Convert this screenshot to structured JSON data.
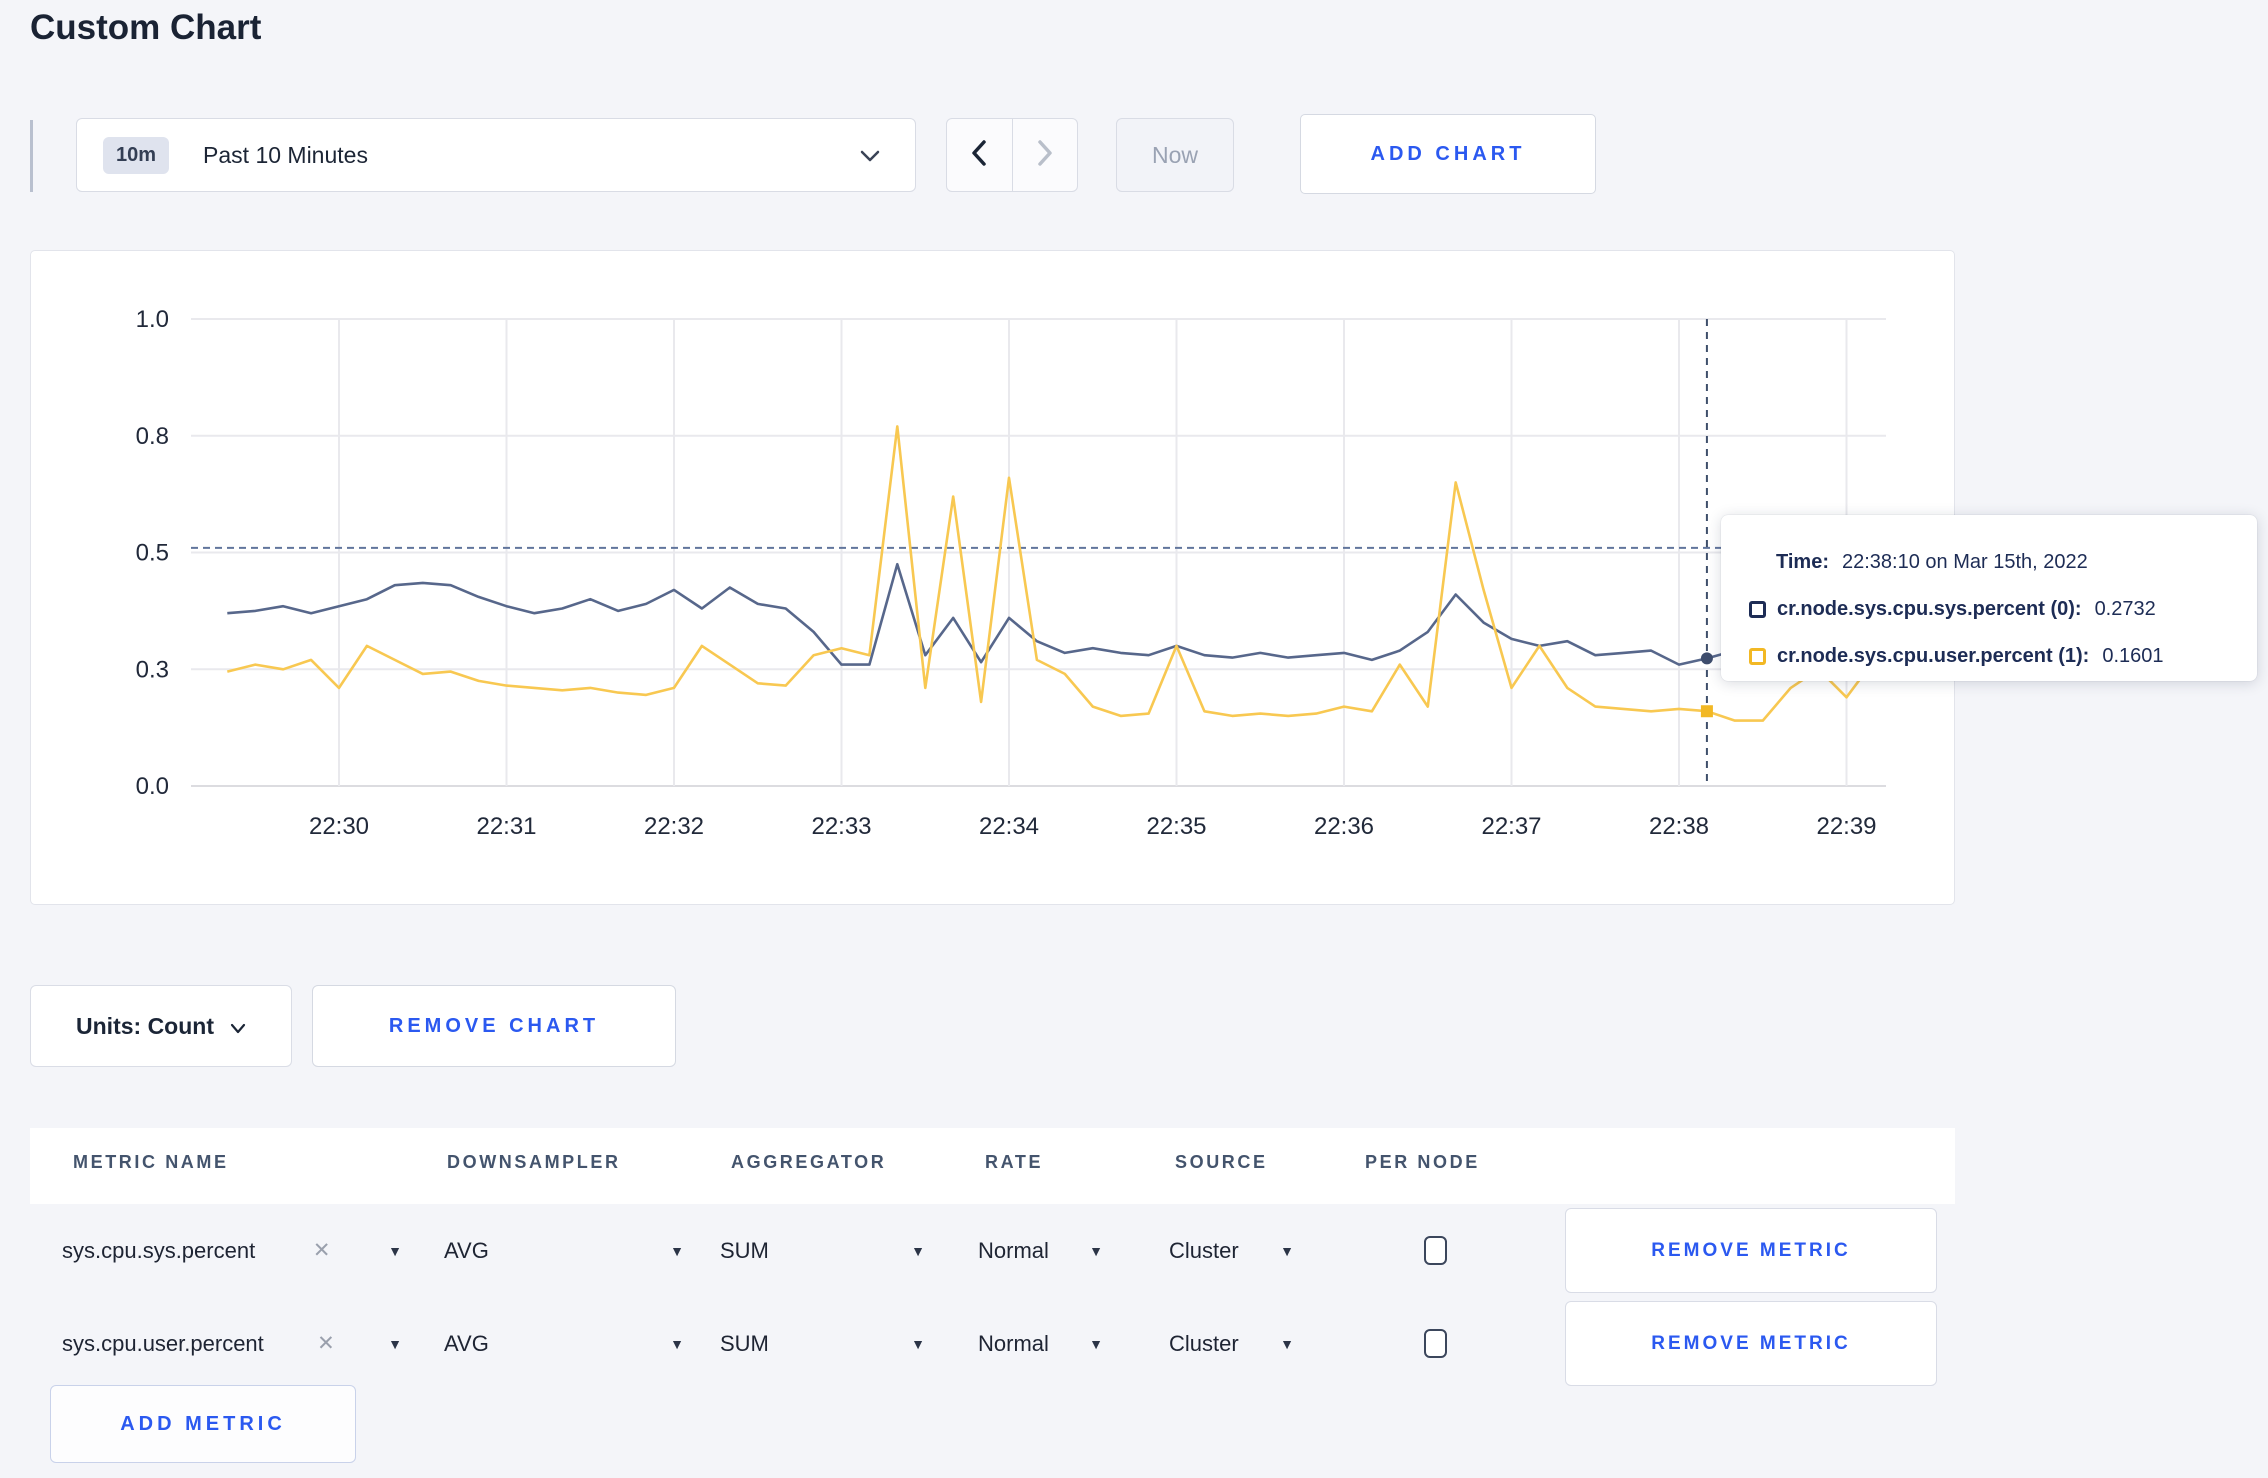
{
  "page": {
    "title": "Custom Chart",
    "background": "#f4f5f9"
  },
  "toolbar": {
    "time_window": {
      "badge": "10m",
      "label": "Past 10 Minutes",
      "dropdown_icon": "chevron-down-icon"
    },
    "prev_icon": "chevron-left-icon",
    "next_icon": "chevron-right-icon",
    "now_label": "Now",
    "add_chart_label": "ADD CHART"
  },
  "colors": {
    "accent_blue": "#2b59f0",
    "series_sys_line": "#57678b",
    "series_sys_swatch": "#1d2c55",
    "series_user_line": "#f8c851",
    "series_user_swatch": "#f2b824",
    "grid": "#e9e9ed",
    "crosshair": "#3f4f6b"
  },
  "chart_data": {
    "type": "line",
    "title": "",
    "xlabel": "",
    "ylabel": "",
    "ylim": [
      0,
      1
    ],
    "grid": true,
    "legend_position": "tooltip",
    "x_tick_labels": [
      "22:30",
      "22:31",
      "22:32",
      "22:33",
      "22:34",
      "22:35",
      "22:36",
      "22:37",
      "22:38",
      "22:39"
    ],
    "y_ticks": [
      0,
      0.25,
      0.5,
      0.75,
      1.0
    ],
    "y_tick_labels": [
      "0.0",
      "0.3",
      "0.5",
      "0.8",
      "1.0"
    ],
    "x_start_time": "22:29:20",
    "x_step_seconds": 10,
    "start_offset_seconds_before_first_tick": 40,
    "series": [
      {
        "name": "cr.node.sys.cpu.sys.percent (0)",
        "values": [
          0.37,
          0.375,
          0.385,
          0.37,
          0.385,
          0.4,
          0.43,
          0.435,
          0.43,
          0.405,
          0.385,
          0.37,
          0.38,
          0.4,
          0.375,
          0.39,
          0.42,
          0.38,
          0.425,
          0.39,
          0.38,
          0.33,
          0.26,
          0.26,
          0.475,
          0.28,
          0.36,
          0.265,
          0.36,
          0.31,
          0.285,
          0.295,
          0.285,
          0.28,
          0.3,
          0.28,
          0.275,
          0.285,
          0.275,
          0.28,
          0.285,
          0.27,
          0.29,
          0.33,
          0.41,
          0.35,
          0.315,
          0.3,
          0.31,
          0.28,
          0.285,
          0.29,
          0.26,
          0.2732,
          0.29,
          0.3,
          0.295,
          0.3,
          0.295,
          0.31
        ]
      },
      {
        "name": "cr.node.sys.cpu.user.percent (1)",
        "values": [
          0.245,
          0.26,
          0.25,
          0.27,
          0.21,
          0.3,
          0.27,
          0.24,
          0.245,
          0.225,
          0.215,
          0.21,
          0.205,
          0.21,
          0.2,
          0.195,
          0.21,
          0.3,
          0.26,
          0.22,
          0.215,
          0.28,
          0.295,
          0.28,
          0.77,
          0.21,
          0.62,
          0.18,
          0.66,
          0.27,
          0.24,
          0.17,
          0.15,
          0.155,
          0.3,
          0.16,
          0.15,
          0.155,
          0.15,
          0.155,
          0.17,
          0.16,
          0.26,
          0.17,
          0.65,
          0.42,
          0.21,
          0.3,
          0.21,
          0.17,
          0.165,
          0.16,
          0.165,
          0.1601,
          0.14,
          0.14,
          0.21,
          0.25,
          0.19,
          0.27
        ]
      }
    ],
    "crosshair": {
      "time": "22:38:10",
      "point_index": 53,
      "hover_y_value": 0.51,
      "sys_value": 0.2732,
      "user_value": 0.1601
    }
  },
  "tooltip": {
    "time_label": "Time:",
    "time_value": "22:38:10 on Mar 15th, 2022",
    "series": [
      {
        "name": "cr.node.sys.cpu.sys.percent (0):",
        "value": "0.2732"
      },
      {
        "name": "cr.node.sys.cpu.user.percent (1):",
        "value": "0.1601"
      }
    ]
  },
  "units": {
    "label": "Units: Count"
  },
  "remove_chart_label": "REMOVE CHART",
  "metrics": {
    "headers": [
      "METRIC NAME",
      "DOWNSAMPLER",
      "AGGREGATOR",
      "RATE",
      "SOURCE",
      "PER NODE"
    ],
    "rows": [
      {
        "name": "sys.cpu.sys.percent",
        "downsampler": "AVG",
        "aggregator": "SUM",
        "rate": "Normal",
        "source": "Cluster",
        "per_node_checked": false,
        "remove_label": "REMOVE METRIC"
      },
      {
        "name": "sys.cpu.user.percent",
        "downsampler": "AVG",
        "aggregator": "SUM",
        "rate": "Normal",
        "source": "Cluster",
        "per_node_checked": false,
        "remove_label": "REMOVE METRIC"
      }
    ],
    "add_label": "ADD METRIC"
  }
}
